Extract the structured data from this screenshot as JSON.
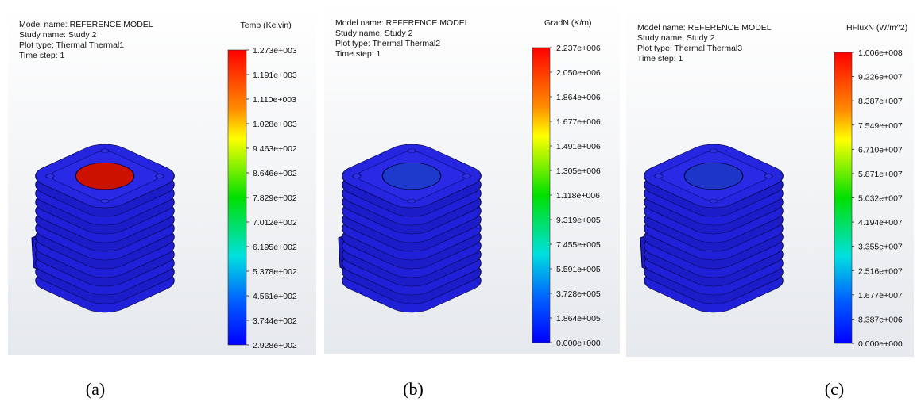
{
  "panels": [
    {
      "info": [
        "Model name: REFERENCE MODEL",
        "Study name: Study 2",
        "Plot type: Thermal Thermal1",
        "Time step: 1"
      ],
      "legend_title": "Temp (Kelvin)",
      "legend_labels": [
        "1.273e+003",
        "1.191e+003",
        "1.110e+003",
        "1.028e+003",
        "9.463e+002",
        "8.646e+002",
        "7.829e+002",
        "7.012e+002",
        "6.195e+002",
        "5.378e+002",
        "4.561e+002",
        "3.744e+002",
        "2.928e+002"
      ],
      "caption": "(a)"
    },
    {
      "info": [
        "Model name: REFERENCE MODEL",
        "Study name: Study 2",
        "Plot type: Thermal Thermal2",
        "Time step: 1"
      ],
      "legend_title": "GradN (K/m)",
      "legend_labels": [
        "2.237e+006",
        "2.050e+006",
        "1.864e+006",
        "1.677e+006",
        "1.491e+006",
        "1.305e+006",
        "1.118e+006",
        "9.319e+005",
        "7.455e+005",
        "5.591e+005",
        "3.728e+005",
        "1.864e+005",
        "0.000e+000"
      ],
      "caption": "(b)"
    },
    {
      "info": [
        "Model name: REFERENCE MODEL",
        "Study name: Study 2",
        "Plot type: Thermal Thermal3",
        "Time step: 1"
      ],
      "legend_title": "HFluxN (W/m^2)",
      "legend_labels": [
        "1.006e+008",
        "9.226e+007",
        "8.387e+007",
        "7.549e+007",
        "6.710e+007",
        "5.871e+007",
        "5.032e+007",
        "4.194e+007",
        "3.355e+007",
        "2.516e+007",
        "1.677e+007",
        "8.387e+006",
        "0.000e+000"
      ],
      "caption": "(c)"
    }
  ]
}
